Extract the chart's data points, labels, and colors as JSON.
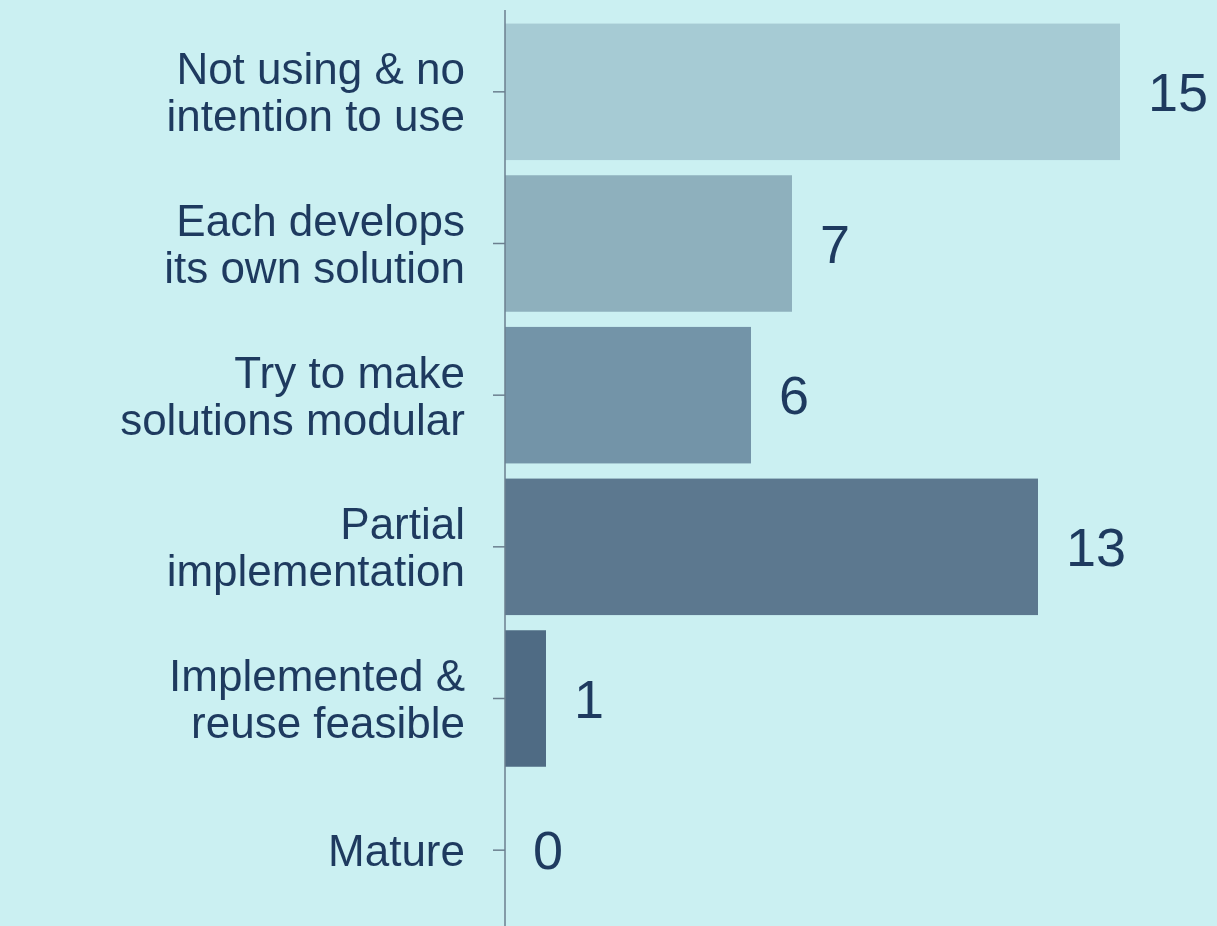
{
  "chart_data": {
    "type": "bar",
    "orientation": "horizontal",
    "categories": [
      "Not using & no intention to use",
      "Each develops its own solution",
      "Try to make solutions modular",
      "Partial implementation",
      "Implemented & reuse feasible",
      "Mature"
    ],
    "values": [
      15,
      7,
      6,
      13,
      1,
      0
    ],
    "colors": [
      "#a6cbd4",
      "#8eb0bd",
      "#7394a8",
      "#5c788f",
      "#4f6b84",
      "#48627a"
    ],
    "data_labels": true
  }
}
